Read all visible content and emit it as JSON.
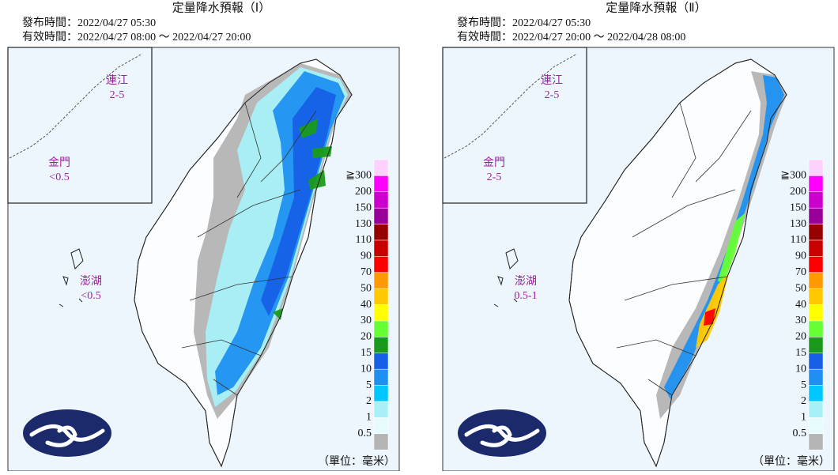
{
  "panels": [
    {
      "title": "定量降水預報（Ⅰ）",
      "issued": "發布時間：2022/04/27 05:30",
      "valid": "有效時間：2022/04/27 08:00 ～ 2022/04/27 20:00",
      "insets": [
        {
          "name": "連江",
          "value": "2-5"
        },
        {
          "name": "金門",
          "value": "<0.5"
        },
        {
          "name": "澎湖",
          "value": "<0.5"
        }
      ],
      "unit": "（單位：毫米）"
    },
    {
      "title": "定量降水預報（Ⅱ）",
      "issued": "發布時間：2022/04/27 05:30",
      "valid": "有效時間：2022/04/27 20:00 ～ 2022/04/28 08:00",
      "insets": [
        {
          "name": "連江",
          "value": "2-5"
        },
        {
          "name": "金門",
          "value": "2-5"
        },
        {
          "name": "澎湖",
          "value": "0.5-1"
        }
      ],
      "unit": "（單位：毫米）"
    }
  ],
  "legend": {
    "labels": [
      "≧300",
      "200",
      "150",
      "130",
      "110",
      "90",
      "70",
      "50",
      "40",
      "30",
      "20",
      "15",
      "10",
      "5",
      "2",
      "1",
      "0.5"
    ],
    "colors": [
      "#fcd2fc",
      "#ff00ff",
      "#cc00cc",
      "#990099",
      "#960000",
      "#c80000",
      "#ff0000",
      "#ff9900",
      "#ffc800",
      "#ffff00",
      "#66ff33",
      "#1a9a1a",
      "#1560e6",
      "#1e90f0",
      "#00c8ff",
      "#a8f0f8",
      "#e6fcfc",
      "#b4b4b4"
    ]
  }
}
